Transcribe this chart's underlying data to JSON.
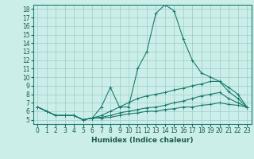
{
  "title": "",
  "xlabel": "Humidex (Indice chaleur)",
  "background_color": "#cceee8",
  "grid_color": "#99cccc",
  "line_color": "#1a7a6e",
  "xlim": [
    -0.5,
    23.5
  ],
  "ylim": [
    4.5,
    18.5
  ],
  "xticks": [
    0,
    1,
    2,
    3,
    4,
    5,
    6,
    7,
    8,
    9,
    10,
    11,
    12,
    13,
    14,
    15,
    16,
    17,
    18,
    19,
    20,
    21,
    22,
    23
  ],
  "yticks": [
    5,
    6,
    7,
    8,
    9,
    10,
    11,
    12,
    13,
    14,
    15,
    16,
    17,
    18
  ],
  "lines": [
    {
      "x": [
        0,
        1,
        2,
        3,
        4,
        5,
        6,
        7,
        8,
        9,
        10,
        11,
        12,
        13,
        14,
        15,
        16,
        17,
        18,
        19,
        20,
        21,
        22,
        23
      ],
      "y": [
        6.5,
        6.0,
        5.5,
        5.5,
        5.5,
        5.0,
        5.2,
        6.5,
        8.8,
        6.5,
        6.5,
        11.0,
        13.0,
        17.5,
        18.5,
        17.8,
        14.5,
        12.0,
        10.5,
        10.0,
        9.5,
        8.3,
        7.5,
        6.5
      ]
    },
    {
      "x": [
        0,
        1,
        2,
        3,
        4,
        5,
        6,
        7,
        8,
        9,
        10,
        11,
        12,
        13,
        14,
        15,
        16,
        17,
        18,
        19,
        20,
        21,
        22,
        23
      ],
      "y": [
        6.5,
        6.0,
        5.5,
        5.5,
        5.5,
        5.0,
        5.2,
        5.5,
        6.0,
        6.5,
        7.0,
        7.5,
        7.8,
        8.0,
        8.2,
        8.5,
        8.7,
        9.0,
        9.2,
        9.5,
        9.5,
        8.8,
        8.0,
        6.5
      ]
    },
    {
      "x": [
        0,
        1,
        2,
        3,
        4,
        5,
        6,
        7,
        8,
        9,
        10,
        11,
        12,
        13,
        14,
        15,
        16,
        17,
        18,
        19,
        20,
        21,
        22,
        23
      ],
      "y": [
        6.5,
        6.0,
        5.5,
        5.5,
        5.5,
        5.0,
        5.2,
        5.3,
        5.5,
        5.8,
        6.0,
        6.2,
        6.4,
        6.5,
        6.7,
        7.0,
        7.2,
        7.5,
        7.8,
        8.0,
        8.2,
        7.5,
        7.0,
        6.5
      ]
    },
    {
      "x": [
        0,
        1,
        2,
        3,
        4,
        5,
        6,
        7,
        8,
        9,
        10,
        11,
        12,
        13,
        14,
        15,
        16,
        17,
        18,
        19,
        20,
        21,
        22,
        23
      ],
      "y": [
        6.5,
        6.0,
        5.5,
        5.5,
        5.5,
        5.0,
        5.2,
        5.2,
        5.3,
        5.5,
        5.7,
        5.8,
        6.0,
        6.0,
        6.2,
        6.3,
        6.5,
        6.5,
        6.7,
        6.8,
        7.0,
        6.8,
        6.7,
        6.5
      ]
    }
  ]
}
